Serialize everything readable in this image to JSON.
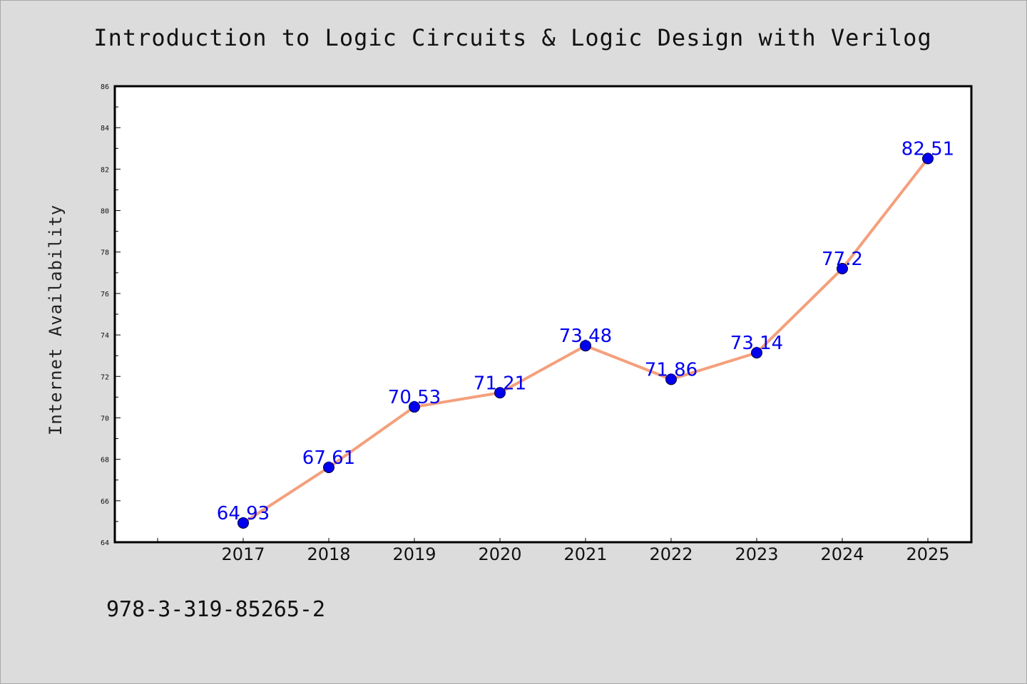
{
  "chart_data": {
    "type": "line",
    "title": "Introduction to Logic Circuits & Logic Design with Verilog",
    "xlabel": "",
    "ylabel": "Internet Availability",
    "categories": [
      "2017",
      "2018",
      "2019",
      "2020",
      "2021",
      "2022",
      "2023",
      "2024",
      "2025"
    ],
    "series": [
      {
        "values": [
          64.93,
          67.61,
          70.53,
          71.21,
          73.48,
          71.86,
          73.14,
          77.2,
          82.51
        ],
        "labels": [
          "64.93",
          "67.61",
          "70.53",
          "71.21",
          "73.48",
          "71.86",
          "73.14",
          "77.2",
          "82.51"
        ]
      }
    ],
    "ylim": [
      64,
      86
    ],
    "yticks": [
      "64",
      "66",
      "68",
      "70",
      "72",
      "74",
      "76",
      "78",
      "80",
      "82",
      "84",
      "86"
    ],
    "grid": false,
    "legend": "none",
    "colors": {
      "line": "#f4a07c",
      "marker": "#0000ee",
      "data_label": "#0000ee",
      "plot_background": "#ffffff",
      "page_background": "#dcdcdc"
    }
  },
  "footer": {
    "isbn": "978-3-319-85265-2"
  }
}
